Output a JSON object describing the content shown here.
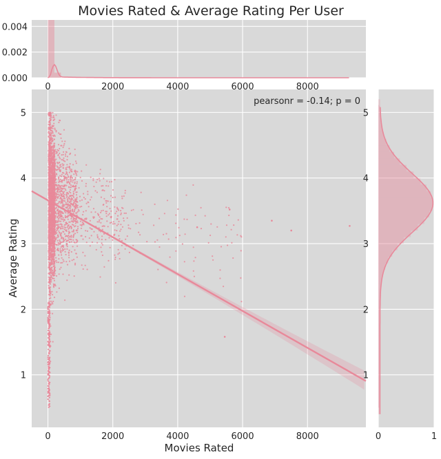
{
  "chart_data": {
    "type": "scatter",
    "title": "Movies Rated & Average Rating Per User",
    "xlabel": "Movies Rated",
    "ylabel": "Average Rating",
    "annotation": "pearsonr = -0.14; p = 0",
    "xlim": [
      -500,
      9800
    ],
    "ylim": [
      0.2,
      5.35
    ],
    "x_ticks": [
      0,
      2000,
      4000,
      6000,
      8000
    ],
    "y_ticks": [
      1,
      2,
      3,
      4,
      5
    ],
    "grid": true,
    "regression": {
      "slope": -0.000281,
      "intercept": 3.66
    },
    "top_marginal": {
      "type": "histogram-kde",
      "ylim": [
        0,
        0.0045
      ],
      "y_ticks": [
        "0.000",
        "0.002",
        "0.004"
      ],
      "x_ticks": [
        0,
        2000,
        4000,
        6000,
        8000
      ]
    },
    "right_marginal": {
      "type": "histogram-kde",
      "xlim": [
        0,
        1
      ],
      "x_ticks": [
        0,
        1
      ],
      "y_ticks": [
        1,
        2,
        3,
        4,
        5
      ]
    },
    "colors": {
      "points": "#e8899a",
      "line": "#e8899a",
      "panel_bg": "#d9d9d9",
      "grid": "#ffffff"
    }
  }
}
